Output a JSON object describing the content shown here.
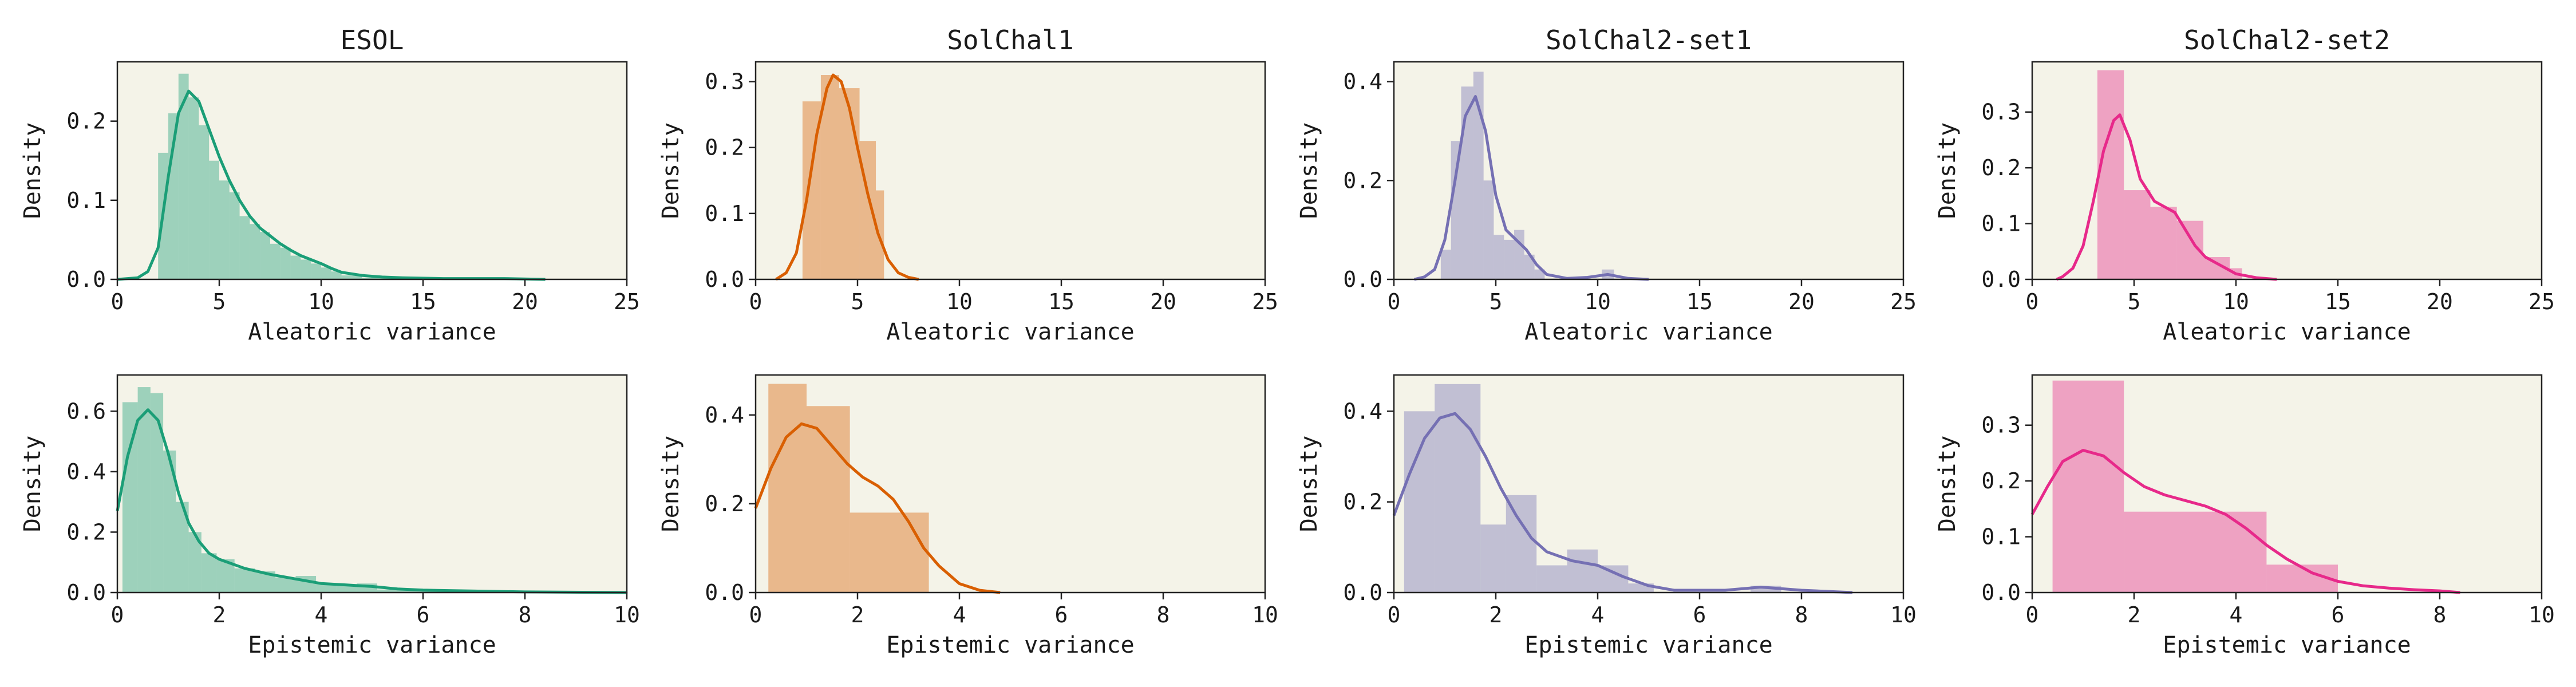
{
  "colors": {
    "esol": "#1b9e77",
    "solchal1": "#d95f02",
    "solchal2set1": "#7570b3",
    "solchal2set2": "#e7298a",
    "panel_bg": "#f4f3e8"
  },
  "chart_data": [
    {
      "type": "bar",
      "id": "esol-aleatoric",
      "title": "ESOL",
      "xlabel": "Aleatoric variance",
      "ylabel": "Density",
      "xlim": [
        0,
        25
      ],
      "ylim": [
        0,
        0.275
      ],
      "xticks": [
        0,
        5,
        10,
        15,
        20,
        25
      ],
      "yticks": [
        0.0,
        0.1,
        0.2
      ],
      "color_key": "esol",
      "bins": [
        [
          2.0,
          2.5,
          0.16
        ],
        [
          2.5,
          3.0,
          0.21
        ],
        [
          3.0,
          3.5,
          0.26
        ],
        [
          3.5,
          4.0,
          0.23
        ],
        [
          4.0,
          4.5,
          0.195
        ],
        [
          4.5,
          5.0,
          0.15
        ],
        [
          5.0,
          5.5,
          0.125
        ],
        [
          5.5,
          6.0,
          0.11
        ],
        [
          6.0,
          6.5,
          0.08
        ],
        [
          6.5,
          7.0,
          0.07
        ],
        [
          7.0,
          7.5,
          0.06
        ],
        [
          7.5,
          8.0,
          0.045
        ],
        [
          8.0,
          8.5,
          0.04
        ],
        [
          8.5,
          9.0,
          0.03
        ],
        [
          9.0,
          9.5,
          0.025
        ],
        [
          9.5,
          10.0,
          0.02
        ],
        [
          10.0,
          10.5,
          0.015
        ],
        [
          10.5,
          11.0,
          0.01
        ],
        [
          11.0,
          11.5,
          0.005
        ],
        [
          11.5,
          12.0,
          0.005
        ],
        [
          12.0,
          14.0,
          0.002
        ],
        [
          14.0,
          21.0,
          0.001
        ]
      ],
      "kde": [
        [
          0,
          0
        ],
        [
          1,
          0.002
        ],
        [
          1.5,
          0.01
        ],
        [
          2,
          0.04
        ],
        [
          2.5,
          0.13
        ],
        [
          3,
          0.21
        ],
        [
          3.5,
          0.238
        ],
        [
          4,
          0.225
        ],
        [
          4.5,
          0.19
        ],
        [
          5,
          0.155
        ],
        [
          5.5,
          0.125
        ],
        [
          6,
          0.1
        ],
        [
          6.5,
          0.08
        ],
        [
          7,
          0.065
        ],
        [
          7.5,
          0.055
        ],
        [
          8,
          0.045
        ],
        [
          8.5,
          0.037
        ],
        [
          9,
          0.03
        ],
        [
          9.5,
          0.025
        ],
        [
          10,
          0.02
        ],
        [
          10.5,
          0.014
        ],
        [
          11,
          0.009
        ],
        [
          12,
          0.005
        ],
        [
          13,
          0.003
        ],
        [
          14,
          0.002
        ],
        [
          16,
          0.001
        ],
        [
          19,
          0.001
        ],
        [
          21,
          0
        ]
      ]
    },
    {
      "type": "bar",
      "id": "solchal1-aleatoric",
      "title": "SolChal1",
      "xlabel": "Aleatoric variance",
      "ylabel": "Density",
      "xlim": [
        0,
        25
      ],
      "ylim": [
        0,
        0.33
      ],
      "xticks": [
        0,
        5,
        10,
        15,
        20,
        25
      ],
      "yticks": [
        0.0,
        0.1,
        0.2,
        0.3
      ],
      "color_key": "solchal1",
      "bins": [
        [
          2.3,
          3.2,
          0.27
        ],
        [
          3.2,
          4.1,
          0.31
        ],
        [
          4.1,
          5.1,
          0.29
        ],
        [
          5.1,
          5.9,
          0.21
        ],
        [
          5.9,
          6.3,
          0.135
        ]
      ],
      "kde": [
        [
          1,
          0
        ],
        [
          1.5,
          0.01
        ],
        [
          2,
          0.04
        ],
        [
          2.5,
          0.12
        ],
        [
          3,
          0.22
        ],
        [
          3.5,
          0.29
        ],
        [
          3.8,
          0.31
        ],
        [
          4.2,
          0.3
        ],
        [
          4.6,
          0.26
        ],
        [
          5,
          0.2
        ],
        [
          5.5,
          0.13
        ],
        [
          6,
          0.07
        ],
        [
          6.5,
          0.03
        ],
        [
          7,
          0.01
        ],
        [
          7.5,
          0.003
        ],
        [
          8,
          0
        ]
      ]
    },
    {
      "type": "bar",
      "id": "solchal2set1-aleatoric",
      "title": "SolChal2-set1",
      "xlabel": "Aleatoric variance",
      "ylabel": "Density",
      "xlim": [
        0,
        25
      ],
      "ylim": [
        0,
        0.44
      ],
      "xticks": [
        0,
        5,
        10,
        15,
        20,
        25
      ],
      "yticks": [
        0.0,
        0.2,
        0.4
      ],
      "color_key": "solchal2set1",
      "bins": [
        [
          2.3,
          2.8,
          0.06
        ],
        [
          2.8,
          3.3,
          0.28
        ],
        [
          3.3,
          3.9,
          0.39
        ],
        [
          3.9,
          4.4,
          0.42
        ],
        [
          4.4,
          4.9,
          0.2
        ],
        [
          4.9,
          5.4,
          0.09
        ],
        [
          5.4,
          5.9,
          0.08
        ],
        [
          5.9,
          6.4,
          0.1
        ],
        [
          6.4,
          6.9,
          0.05
        ],
        [
          6.9,
          7.4,
          0.02
        ],
        [
          10.2,
          10.8,
          0.02
        ]
      ],
      "kde": [
        [
          1,
          0
        ],
        [
          1.5,
          0.005
        ],
        [
          2,
          0.02
        ],
        [
          2.5,
          0.08
        ],
        [
          3,
          0.2
        ],
        [
          3.5,
          0.33
        ],
        [
          4,
          0.37
        ],
        [
          4.5,
          0.3
        ],
        [
          5,
          0.17
        ],
        [
          5.5,
          0.1
        ],
        [
          6,
          0.08
        ],
        [
          6.5,
          0.06
        ],
        [
          7,
          0.03
        ],
        [
          7.5,
          0.01
        ],
        [
          8.5,
          0.002
        ],
        [
          9.5,
          0.004
        ],
        [
          10.5,
          0.01
        ],
        [
          11.5,
          0.002
        ],
        [
          12.5,
          0
        ]
      ]
    },
    {
      "type": "bar",
      "id": "solchal2set2-aleatoric",
      "title": "SolChal2-set2",
      "xlabel": "Aleatoric variance",
      "ylabel": "Density",
      "xlim": [
        0,
        25
      ],
      "ylim": [
        0,
        0.39
      ],
      "xticks": [
        0,
        5,
        10,
        15,
        20,
        25
      ],
      "yticks": [
        0.0,
        0.1,
        0.2,
        0.3
      ],
      "color_key": "solchal2set2",
      "bins": [
        [
          3.2,
          4.5,
          0.375
        ],
        [
          4.5,
          5.8,
          0.16
        ],
        [
          5.8,
          7.1,
          0.13
        ],
        [
          7.1,
          8.4,
          0.105
        ],
        [
          8.4,
          9.7,
          0.04
        ],
        [
          9.7,
          10.3,
          0.02
        ]
      ],
      "kde": [
        [
          1.2,
          0
        ],
        [
          1.5,
          0.005
        ],
        [
          2,
          0.02
        ],
        [
          2.5,
          0.06
        ],
        [
          3,
          0.14
        ],
        [
          3.5,
          0.23
        ],
        [
          4,
          0.285
        ],
        [
          4.3,
          0.295
        ],
        [
          4.8,
          0.25
        ],
        [
          5.3,
          0.18
        ],
        [
          6,
          0.14
        ],
        [
          6.5,
          0.13
        ],
        [
          7,
          0.12
        ],
        [
          7.5,
          0.09
        ],
        [
          8,
          0.06
        ],
        [
          8.5,
          0.04
        ],
        [
          9,
          0.03
        ],
        [
          9.5,
          0.02
        ],
        [
          10,
          0.01
        ],
        [
          11,
          0.003
        ],
        [
          12,
          0
        ]
      ]
    },
    {
      "type": "bar",
      "id": "esol-epistemic",
      "title": "",
      "xlabel": "Epistemic variance",
      "ylabel": "Density",
      "xlim": [
        0,
        10
      ],
      "ylim": [
        0,
        0.72
      ],
      "xticks": [
        0,
        2,
        4,
        6,
        8,
        10
      ],
      "yticks": [
        0.0,
        0.2,
        0.4,
        0.6
      ],
      "color_key": "esol",
      "bins": [
        [
          0.1,
          0.4,
          0.63
        ],
        [
          0.4,
          0.65,
          0.68
        ],
        [
          0.65,
          0.9,
          0.66
        ],
        [
          0.9,
          1.15,
          0.47
        ],
        [
          1.15,
          1.4,
          0.3
        ],
        [
          1.4,
          1.65,
          0.2
        ],
        [
          1.65,
          1.95,
          0.13
        ],
        [
          1.95,
          2.3,
          0.11
        ],
        [
          2.3,
          2.7,
          0.08
        ],
        [
          2.7,
          3.1,
          0.07
        ],
        [
          3.1,
          3.5,
          0.05
        ],
        [
          3.5,
          3.9,
          0.055
        ],
        [
          3.9,
          4.3,
          0.03
        ],
        [
          4.3,
          4.7,
          0.025
        ],
        [
          4.7,
          5.1,
          0.03
        ],
        [
          5.1,
          5.6,
          0.01
        ],
        [
          5.6,
          6.1,
          0.008
        ],
        [
          6.1,
          7.0,
          0.004
        ],
        [
          7.0,
          7.8,
          0.004
        ]
      ],
      "kde": [
        [
          0,
          0.27
        ],
        [
          0.2,
          0.45
        ],
        [
          0.4,
          0.57
        ],
        [
          0.6,
          0.605
        ],
        [
          0.8,
          0.57
        ],
        [
          1.0,
          0.46
        ],
        [
          1.2,
          0.33
        ],
        [
          1.4,
          0.23
        ],
        [
          1.6,
          0.17
        ],
        [
          1.8,
          0.13
        ],
        [
          2.0,
          0.11
        ],
        [
          2.5,
          0.08
        ],
        [
          3.0,
          0.06
        ],
        [
          3.5,
          0.045
        ],
        [
          4.0,
          0.03
        ],
        [
          4.5,
          0.025
        ],
        [
          5.0,
          0.02
        ],
        [
          5.5,
          0.012
        ],
        [
          6.0,
          0.008
        ],
        [
          7.0,
          0.005
        ],
        [
          8.0,
          0.002
        ],
        [
          10,
          0
        ]
      ]
    },
    {
      "type": "bar",
      "id": "solchal1-epistemic",
      "title": "",
      "xlabel": "Epistemic variance",
      "ylabel": "Density",
      "xlim": [
        0,
        10
      ],
      "ylim": [
        0,
        0.49
      ],
      "xticks": [
        0,
        2,
        4,
        6,
        8,
        10
      ],
      "yticks": [
        0.0,
        0.2,
        0.4
      ],
      "color_key": "solchal1",
      "bins": [
        [
          0.25,
          1.0,
          0.47
        ],
        [
          1.0,
          1.85,
          0.42
        ],
        [
          1.85,
          3.4,
          0.18
        ]
      ],
      "kde": [
        [
          0,
          0.19
        ],
        [
          0.3,
          0.28
        ],
        [
          0.6,
          0.35
        ],
        [
          0.9,
          0.38
        ],
        [
          1.2,
          0.37
        ],
        [
          1.5,
          0.33
        ],
        [
          1.8,
          0.29
        ],
        [
          2.1,
          0.26
        ],
        [
          2.4,
          0.24
        ],
        [
          2.7,
          0.21
        ],
        [
          3.0,
          0.16
        ],
        [
          3.3,
          0.1
        ],
        [
          3.6,
          0.06
        ],
        [
          4.0,
          0.02
        ],
        [
          4.4,
          0.005
        ],
        [
          4.8,
          0
        ]
      ]
    },
    {
      "type": "bar",
      "id": "solchal2set1-epistemic",
      "title": "",
      "xlabel": "Epistemic variance",
      "ylabel": "Density",
      "xlim": [
        0,
        10
      ],
      "ylim": [
        0,
        0.48
      ],
      "xticks": [
        0,
        2,
        4,
        6,
        8,
        10
      ],
      "yticks": [
        0.0,
        0.2,
        0.4
      ],
      "color_key": "solchal2set1",
      "bins": [
        [
          0.2,
          0.8,
          0.4
        ],
        [
          0.8,
          1.7,
          0.46
        ],
        [
          1.7,
          2.2,
          0.15
        ],
        [
          2.2,
          2.8,
          0.215
        ],
        [
          2.8,
          3.4,
          0.06
        ],
        [
          3.4,
          4.0,
          0.095
        ],
        [
          4.0,
          4.6,
          0.06
        ],
        [
          4.6,
          5.1,
          0.02
        ],
        [
          7.0,
          7.6,
          0.015
        ]
      ],
      "kde": [
        [
          0,
          0.17
        ],
        [
          0.3,
          0.26
        ],
        [
          0.6,
          0.34
        ],
        [
          0.9,
          0.385
        ],
        [
          1.2,
          0.395
        ],
        [
          1.5,
          0.36
        ],
        [
          1.8,
          0.3
        ],
        [
          2.1,
          0.23
        ],
        [
          2.4,
          0.17
        ],
        [
          2.7,
          0.12
        ],
        [
          3.0,
          0.09
        ],
        [
          3.5,
          0.07
        ],
        [
          4.0,
          0.06
        ],
        [
          4.5,
          0.035
        ],
        [
          5.0,
          0.015
        ],
        [
          5.5,
          0.005
        ],
        [
          6.5,
          0.005
        ],
        [
          7.2,
          0.012
        ],
        [
          8.0,
          0.005
        ],
        [
          9.0,
          0
        ]
      ]
    },
    {
      "type": "bar",
      "id": "solchal2set2-epistemic",
      "title": "",
      "xlabel": "Epistemic variance",
      "ylabel": "Density",
      "xlim": [
        0,
        10
      ],
      "ylim": [
        0,
        0.39
      ],
      "xticks": [
        0,
        2,
        4,
        6,
        8,
        10
      ],
      "yticks": [
        0.0,
        0.1,
        0.2,
        0.3
      ],
      "color_key": "solchal2set2",
      "bins": [
        [
          0.4,
          1.8,
          0.38
        ],
        [
          1.8,
          3.2,
          0.145
        ],
        [
          3.2,
          4.6,
          0.145
        ],
        [
          4.6,
          6.0,
          0.05
        ]
      ],
      "kde": [
        [
          0,
          0.14
        ],
        [
          0.3,
          0.19
        ],
        [
          0.6,
          0.235
        ],
        [
          1.0,
          0.255
        ],
        [
          1.4,
          0.245
        ],
        [
          1.8,
          0.215
        ],
        [
          2.2,
          0.19
        ],
        [
          2.6,
          0.175
        ],
        [
          3.0,
          0.165
        ],
        [
          3.4,
          0.155
        ],
        [
          3.8,
          0.14
        ],
        [
          4.2,
          0.115
        ],
        [
          4.6,
          0.085
        ],
        [
          5.0,
          0.06
        ],
        [
          5.5,
          0.035
        ],
        [
          6.0,
          0.02
        ],
        [
          6.5,
          0.012
        ],
        [
          7.0,
          0.008
        ],
        [
          7.5,
          0.005
        ],
        [
          8.0,
          0.003
        ],
        [
          8.4,
          0
        ]
      ]
    }
  ]
}
